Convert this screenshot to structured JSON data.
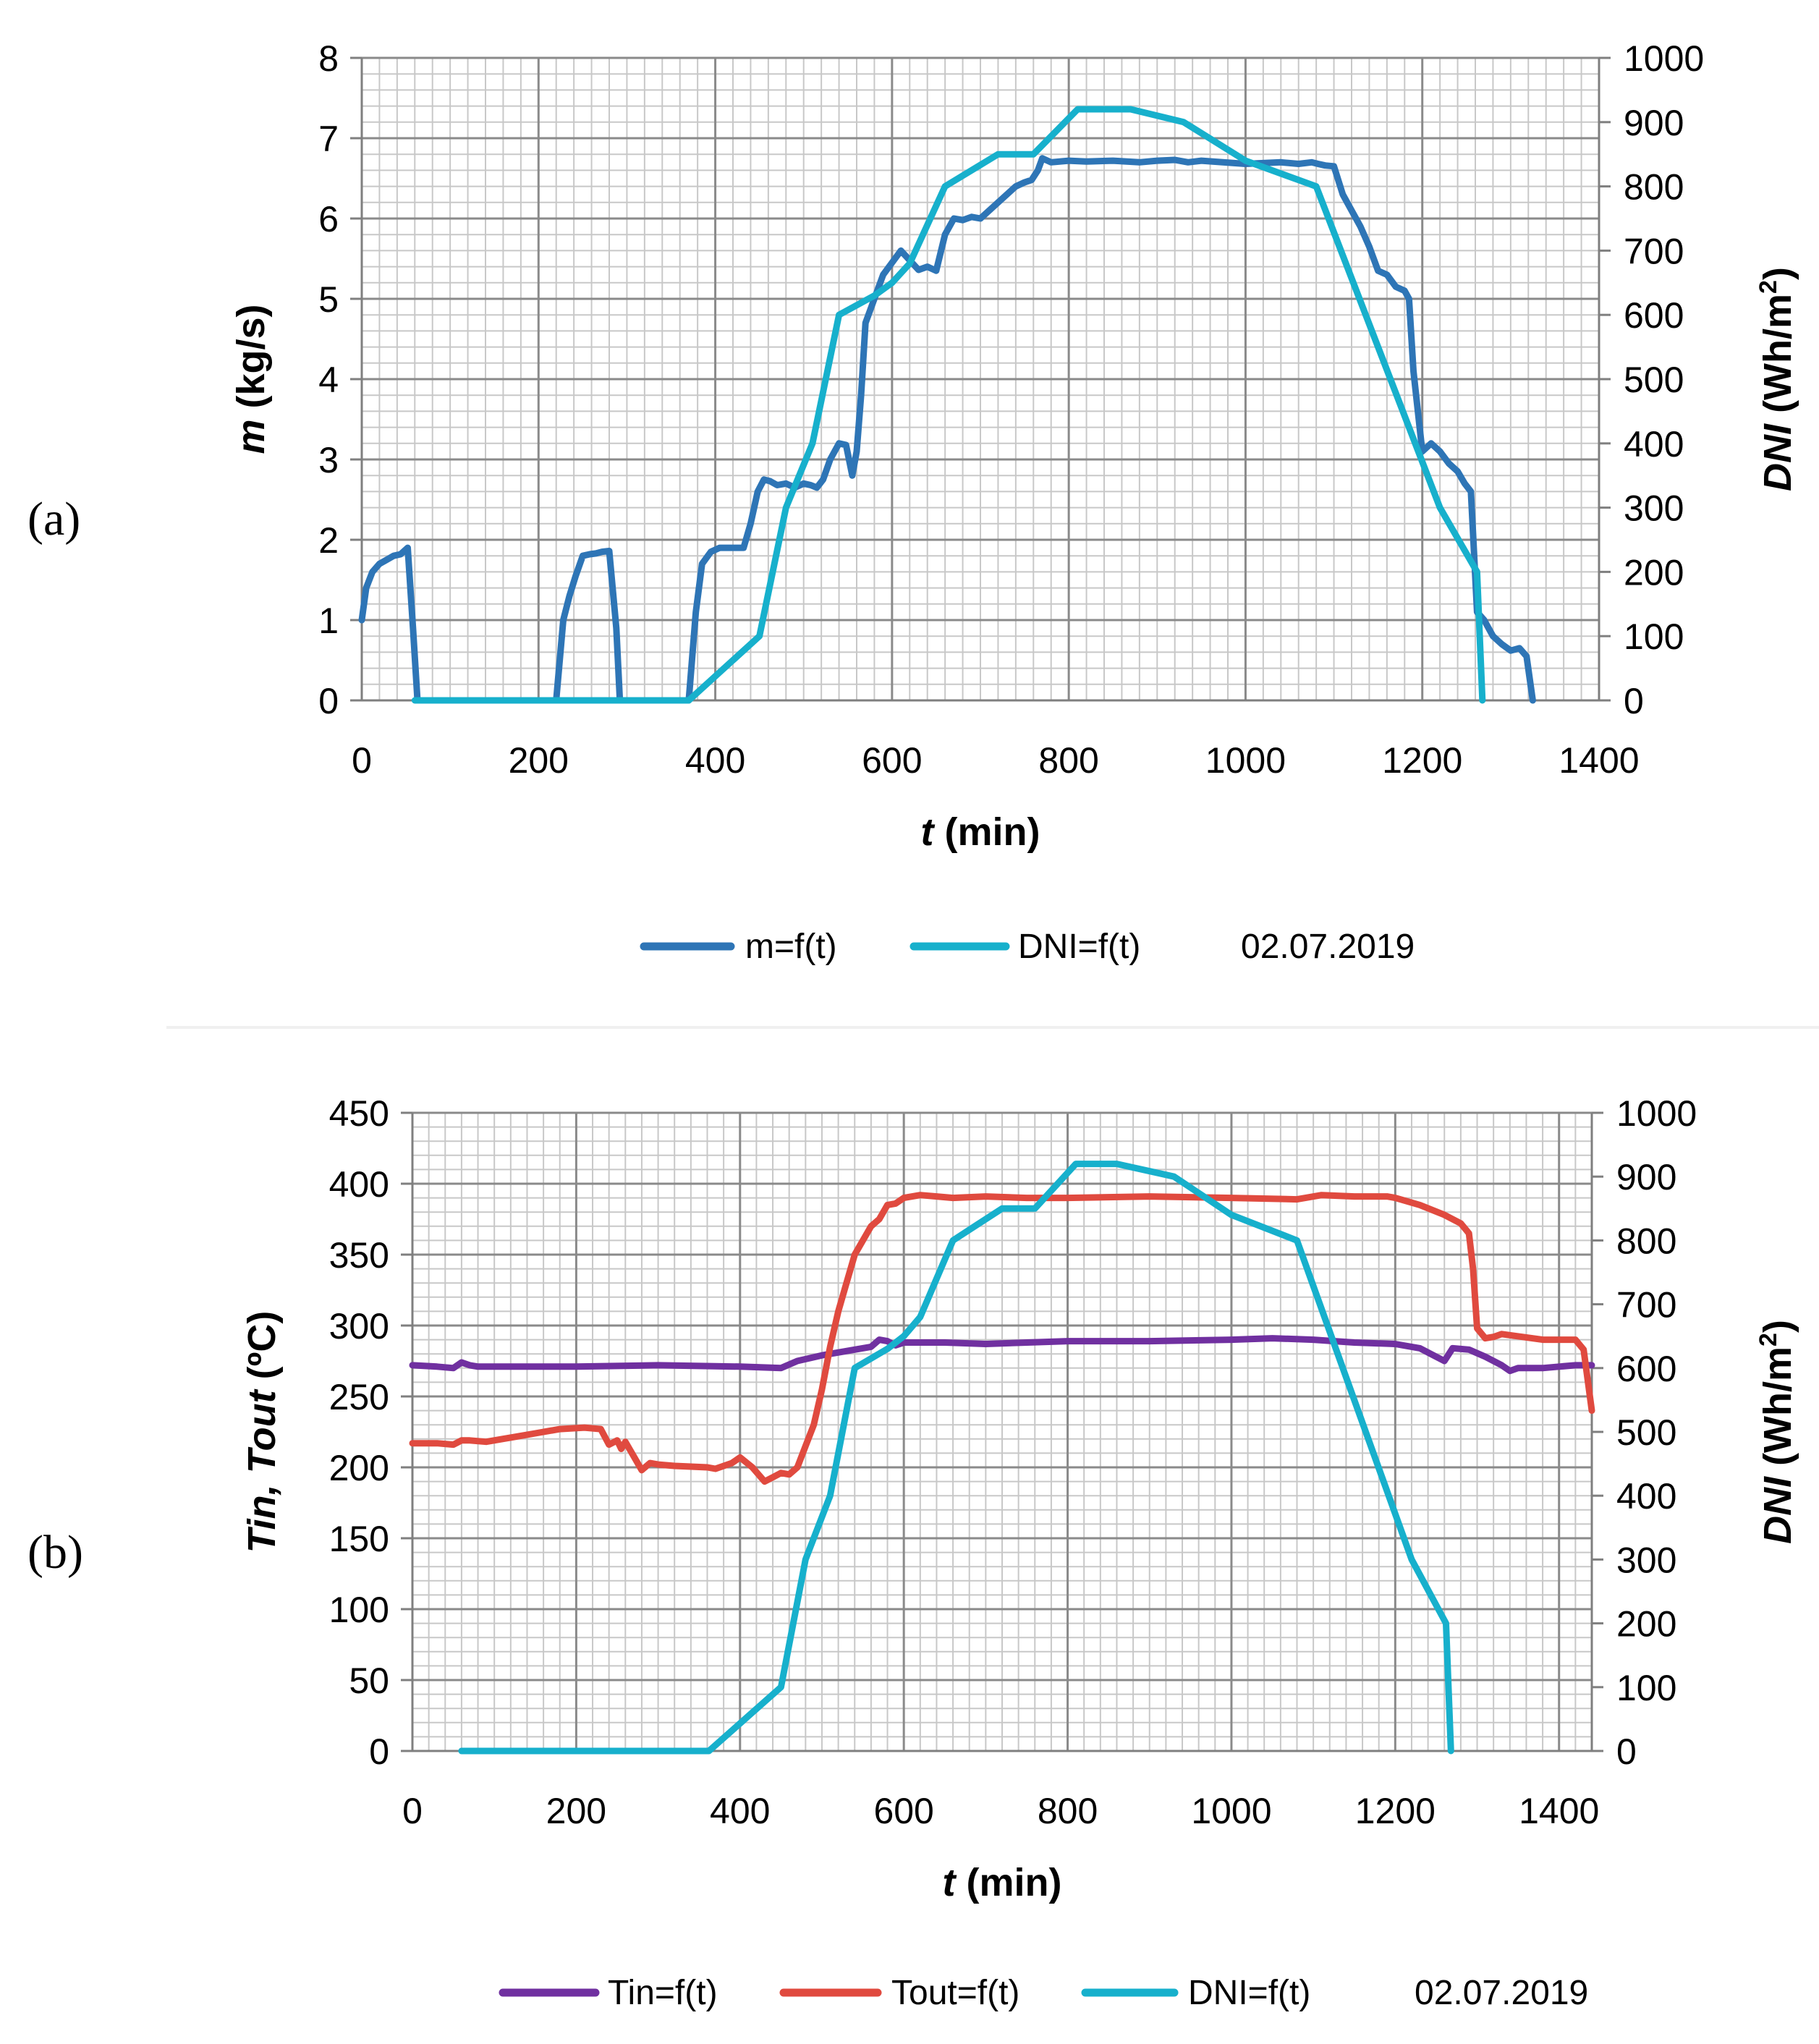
{
  "figure": {
    "panel_a_label": "(a)",
    "panel_b_label": "(b)"
  },
  "chart_data": [
    {
      "type": "line",
      "panel": "(a)",
      "xlabel_italic": "t",
      "xlabel_rest": " (min)",
      "ylabel_left_italic": "m",
      "ylabel_left_rest": " (kg/s)",
      "ylabel_right_italic": "DNI",
      "ylabel_right_rest": " (Wh/m",
      "ylabel_right_sup": "2",
      "ylabel_right_close": ")",
      "xlim": [
        0,
        1400
      ],
      "xticks": [
        0,
        200,
        400,
        600,
        800,
        1000,
        1200,
        1400
      ],
      "ylim_left": [
        0,
        8
      ],
      "yticks_left": [
        0,
        1,
        2,
        3,
        4,
        5,
        6,
        7,
        8
      ],
      "ylim_right": [
        0,
        1000
      ],
      "yticks_right": [
        0,
        100,
        200,
        300,
        400,
        500,
        600,
        700,
        800,
        900,
        1000
      ],
      "grid": true,
      "legend_date": "02.07.2019",
      "series": [
        {
          "name": "m=f(t)",
          "axis": "left",
          "color": "#2e75b6",
          "x": [
            0,
            5,
            12,
            20,
            28,
            36,
            44,
            52,
            58,
            63,
            100,
            150,
            200,
            220,
            228,
            235,
            242,
            250,
            258,
            265,
            272,
            280,
            288,
            292,
            300,
            350,
            370,
            378,
            385,
            395,
            405,
            415,
            425,
            432,
            440,
            448,
            455,
            462,
            470,
            480,
            490,
            500,
            508,
            515,
            522,
            530,
            540,
            548,
            555,
            560,
            565,
            570,
            580,
            590,
            600,
            610,
            620,
            630,
            640,
            650,
            660,
            670,
            680,
            690,
            700,
            720,
            740,
            750,
            758,
            765,
            770,
            780,
            800,
            820,
            850,
            880,
            900,
            920,
            935,
            950,
            1000,
            1040,
            1060,
            1075,
            1082,
            1090,
            1100,
            1110,
            1120,
            1130,
            1140,
            1150,
            1160,
            1170,
            1180,
            1185,
            1190,
            1200,
            1210,
            1220,
            1230,
            1240,
            1248,
            1255,
            1262,
            1270,
            1280,
            1290,
            1300,
            1310,
            1318,
            1325
          ],
          "values": [
            1.0,
            1.4,
            1.6,
            1.7,
            1.75,
            1.8,
            1.82,
            1.9,
            0.9,
            0,
            0,
            0,
            0,
            0,
            1.0,
            1.3,
            1.55,
            1.8,
            1.82,
            1.83,
            1.85,
            1.86,
            0.9,
            0,
            0,
            0,
            0,
            1.1,
            1.7,
            1.85,
            1.9,
            1.9,
            1.9,
            1.9,
            2.2,
            2.6,
            2.75,
            2.73,
            2.68,
            2.7,
            2.65,
            2.7,
            2.68,
            2.65,
            2.75,
            3.0,
            3.2,
            3.18,
            2.8,
            3.1,
            3.8,
            4.7,
            5.0,
            5.3,
            5.45,
            5.6,
            5.48,
            5.36,
            5.4,
            5.35,
            5.8,
            6.0,
            5.98,
            6.02,
            6.0,
            6.2,
            6.4,
            6.45,
            6.48,
            6.6,
            6.75,
            6.7,
            6.72,
            6.71,
            6.72,
            6.7,
            6.72,
            6.73,
            6.7,
            6.72,
            6.68,
            6.7,
            6.68,
            6.7,
            6.68,
            6.66,
            6.65,
            6.3,
            6.1,
            5.9,
            5.65,
            5.35,
            5.3,
            5.15,
            5.1,
            5.0,
            4.1,
            3.1,
            3.2,
            3.1,
            2.95,
            2.85,
            2.7,
            2.6,
            1.1,
            1.0,
            0.8,
            0.7,
            0.62,
            0.65,
            0.55,
            0
          ]
        },
        {
          "name": "DNI=f(t)",
          "axis": "right",
          "color": "#17b0cc",
          "x": [
            60,
            100,
            200,
            300,
            370,
            450,
            480,
            510,
            540,
            580,
            600,
            620,
            640,
            660,
            690,
            720,
            760,
            810,
            870,
            930,
            1000,
            1080,
            1150,
            1220,
            1262,
            1265,
            1268
          ],
          "values": [
            0,
            0,
            0,
            0,
            0,
            100,
            300,
            400,
            600,
            630,
            650,
            680,
            740,
            800,
            825,
            850,
            850,
            920,
            920,
            900,
            840,
            800,
            550,
            300,
            200,
            100,
            0
          ]
        }
      ]
    },
    {
      "type": "line",
      "panel": "(b)",
      "xlabel_italic": "t",
      "xlabel_rest": " (min)",
      "ylabel_left_italic": "Tin, Tout",
      "ylabel_left_rest": " (ºC)",
      "ylabel_right_italic": "DNI",
      "ylabel_right_rest": " (Wh/m",
      "ylabel_right_sup": "2",
      "ylabel_right_close": ")",
      "xlim": [
        0,
        1440
      ],
      "xticks": [
        0,
        200,
        400,
        600,
        800,
        1000,
        1200,
        1400
      ],
      "ylim_left": [
        0,
        450
      ],
      "yticks_left": [
        0,
        50,
        100,
        150,
        200,
        250,
        300,
        350,
        400,
        450
      ],
      "ylim_right": [
        0,
        1000
      ],
      "yticks_right": [
        0,
        100,
        200,
        300,
        400,
        500,
        600,
        700,
        800,
        900,
        1000
      ],
      "grid": true,
      "legend_date": "02.07.2019",
      "series": [
        {
          "name": "Tin=f(t)",
          "axis": "left",
          "color": "#7030a0",
          "x": [
            0,
            30,
            50,
            60,
            70,
            80,
            100,
            200,
            300,
            400,
            450,
            470,
            500,
            540,
            560,
            570,
            580,
            590,
            600,
            650,
            700,
            800,
            900,
            1000,
            1050,
            1100,
            1150,
            1200,
            1230,
            1250,
            1260,
            1270,
            1290,
            1310,
            1330,
            1340,
            1350,
            1360,
            1380,
            1400,
            1420,
            1440
          ],
          "values": [
            272,
            271,
            270,
            274,
            272,
            271,
            271,
            271,
            272,
            271,
            270,
            275,
            279,
            283,
            285,
            290,
            289,
            286,
            288,
            288,
            287,
            289,
            289,
            290,
            291,
            290,
            288,
            287,
            284,
            278,
            275,
            284,
            283,
            278,
            272,
            268,
            270,
            270,
            270,
            271,
            272,
            272
          ]
        },
        {
          "name": "Tout=f(t)",
          "axis": "left",
          "color": "#e04a3f",
          "x": [
            0,
            30,
            50,
            60,
            70,
            90,
            110,
            130,
            150,
            180,
            210,
            230,
            240,
            250,
            255,
            260,
            270,
            280,
            290,
            300,
            320,
            360,
            370,
            390,
            400,
            415,
            430,
            440,
            450,
            460,
            470,
            480,
            490,
            500,
            510,
            520,
            530,
            540,
            560,
            570,
            580,
            590,
            600,
            620,
            640,
            660,
            700,
            750,
            800,
            900,
            1000,
            1080,
            1110,
            1150,
            1190,
            1200,
            1230,
            1260,
            1280,
            1290,
            1295,
            1300,
            1310,
            1320,
            1330,
            1380,
            1420,
            1430,
            1440
          ],
          "values": [
            217,
            217,
            216,
            219,
            219,
            218,
            220,
            222,
            224,
            227,
            228,
            227,
            216,
            219,
            213,
            218,
            208,
            198,
            203,
            202,
            201,
            200,
            199,
            203,
            207,
            200,
            190,
            193,
            196,
            195,
            200,
            215,
            230,
            255,
            285,
            310,
            330,
            350,
            370,
            375,
            385,
            386,
            390,
            392,
            391,
            390,
            391,
            390,
            390,
            391,
            390,
            389,
            392,
            391,
            391,
            390,
            385,
            378,
            372,
            365,
            340,
            298,
            291,
            292,
            294,
            290,
            290,
            283,
            240
          ]
        },
        {
          "name": "DNI=f(t)",
          "axis": "right",
          "color": "#17b0cc",
          "x": [
            60,
            100,
            200,
            300,
            362,
            450,
            480,
            510,
            540,
            580,
            600,
            620,
            640,
            660,
            690,
            720,
            760,
            810,
            860,
            930,
            1000,
            1080,
            1150,
            1220,
            1262,
            1265,
            1268
          ],
          "values": [
            0,
            0,
            0,
            0,
            0,
            100,
            300,
            400,
            600,
            630,
            650,
            680,
            740,
            800,
            825,
            850,
            850,
            920,
            920,
            900,
            840,
            800,
            550,
            300,
            200,
            100,
            0
          ]
        }
      ]
    }
  ]
}
